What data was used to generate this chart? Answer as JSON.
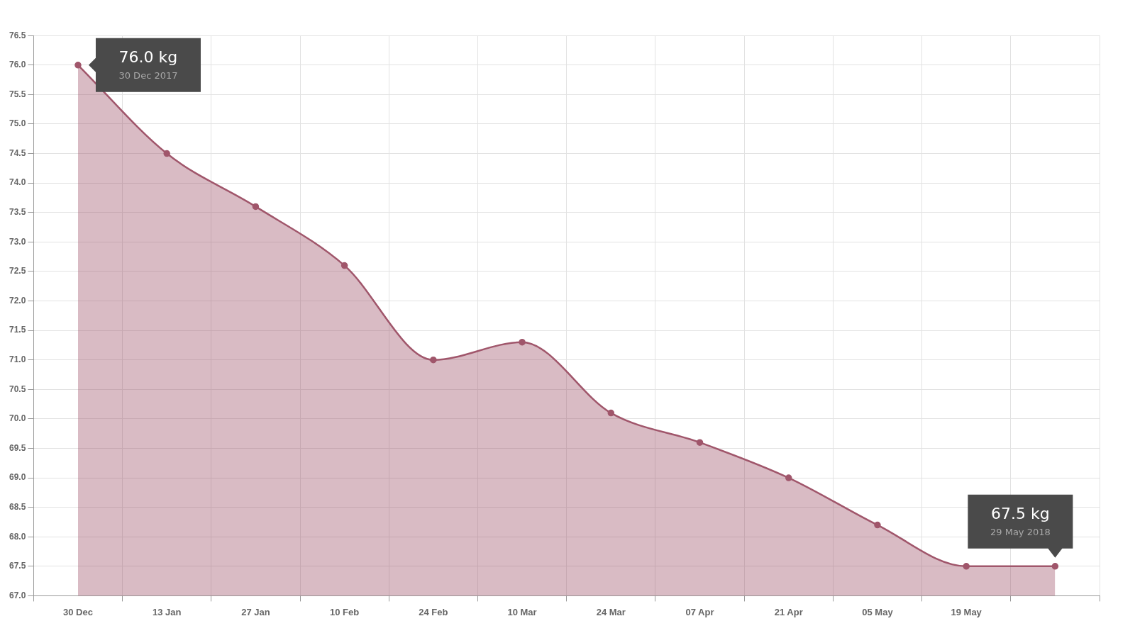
{
  "chart_data": {
    "type": "area",
    "categories": [
      "30 Dec",
      "13 Jan",
      "27 Jan",
      "10 Feb",
      "24 Feb",
      "10 Mar",
      "24 Mar",
      "07 Apr",
      "21 Apr",
      "05 May",
      "19 May",
      null
    ],
    "series": [
      {
        "color": "#a0566b",
        "values": [
          76.0,
          74.5,
          73.6,
          72.6,
          71.0,
          71.3,
          70.1,
          69.6,
          69.0,
          68.2,
          67.5,
          67.5
        ]
      }
    ],
    "ylim": [
      67,
      76.5
    ],
    "yticks": [
      {
        "value": 67,
        "label": "67.0"
      },
      {
        "value": 67.5,
        "label": "67.5"
      },
      {
        "value": 68,
        "label": "68.0"
      },
      {
        "value": 68.5,
        "label": "68.5"
      },
      {
        "value": 69,
        "label": "69.0"
      },
      {
        "value": 69.5,
        "label": "69.5"
      },
      {
        "value": 70,
        "label": "70.0"
      },
      {
        "value": 70.5,
        "label": "70.5"
      },
      {
        "value": 71,
        "label": "71.0"
      },
      {
        "value": 71.5,
        "label": "71.5"
      },
      {
        "value": 72,
        "label": "72.0"
      },
      {
        "value": 72.5,
        "label": "72.5"
      },
      {
        "value": 73,
        "label": "73.0"
      },
      {
        "value": 73.5,
        "label": "73.5"
      },
      {
        "value": 74,
        "label": "74.0"
      },
      {
        "value": 74.5,
        "label": "74.5"
      },
      {
        "value": 75,
        "label": "75.0"
      },
      {
        "value": 75.5,
        "label": "75.5"
      },
      {
        "value": 76,
        "label": "76.0"
      },
      {
        "value": 76.5,
        "label": "76.5"
      }
    ],
    "annotations": [
      {
        "text": "76.0 kg\n30 Dec 2017",
        "x": "30 Dec",
        "y": 76.0
      },
      {
        "text": "67.5 kg\n29 May 2018",
        "y": 67.5
      }
    ],
    "grid": true,
    "legend": false,
    "marker": "circle",
    "line_style": "solid"
  }
}
